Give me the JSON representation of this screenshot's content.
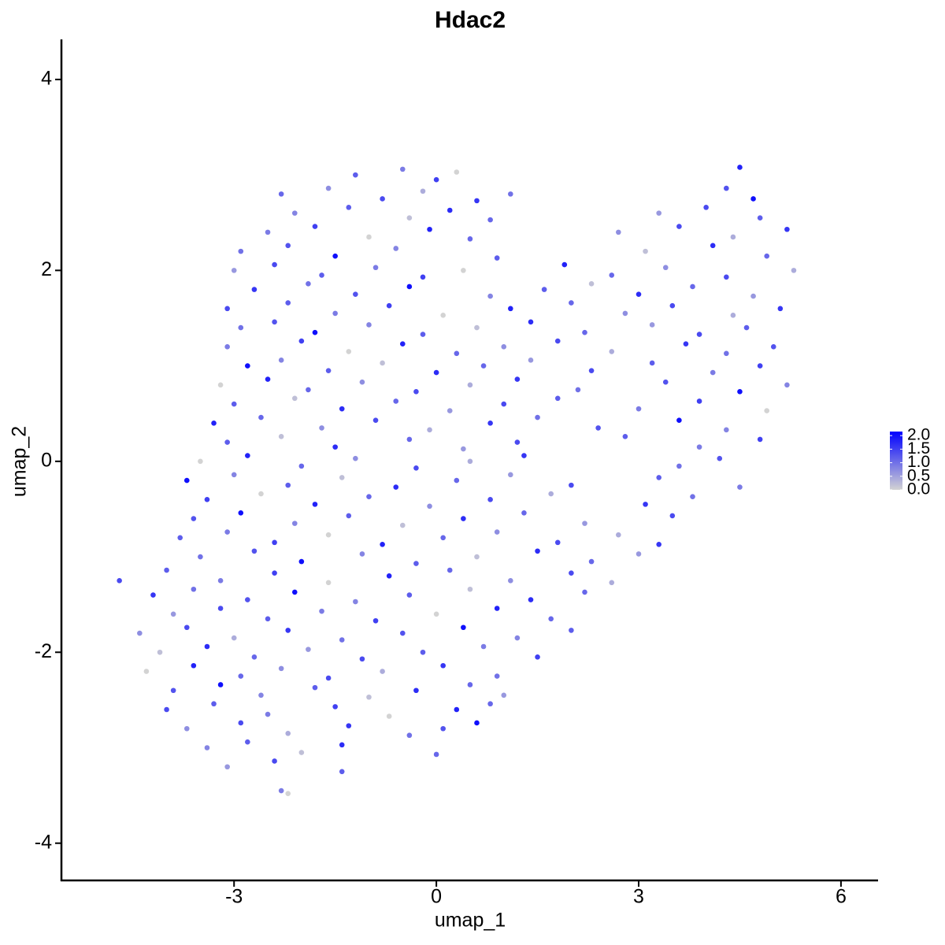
{
  "chart_data": {
    "type": "scatter",
    "title": "Hdac2",
    "x_label": "umap_1",
    "y_label": "umap_2",
    "xlim": [
      -5.56,
      6.55
    ],
    "ylim": [
      -4.39,
      4.42
    ],
    "xticks": [
      -3,
      0,
      3,
      6
    ],
    "yticks": [
      -4,
      -2,
      0,
      2,
      4
    ],
    "color_scale": {
      "low": "#d3d3d3",
      "high": "#0000ff",
      "limits": [
        0,
        2.15
      ],
      "ticks": [
        {
          "value": 0,
          "label": "0.0"
        },
        {
          "value": 0.5,
          "label": "0.5"
        },
        {
          "value": 1,
          "label": "1.0"
        },
        {
          "value": 1.5,
          "label": "1.5"
        },
        {
          "value": 2,
          "label": "2.0"
        }
      ]
    },
    "x": [
      -1.2,
      -0.5,
      0.0,
      0.3,
      4.5,
      -2.3,
      -1.6,
      -0.8,
      -0.2,
      0.6,
      1.1,
      4.3,
      4.7,
      -2.1,
      -1.3,
      -0.4,
      0.2,
      0.8,
      3.3,
      4.0,
      4.8,
      -2.5,
      -1.8,
      -1.0,
      -0.1,
      0.5,
      2.7,
      3.6,
      4.4,
      5.2,
      -2.9,
      -2.2,
      -1.5,
      -0.6,
      0.9,
      3.1,
      4.1,
      4.9,
      -3.0,
      -2.4,
      -1.7,
      -0.9,
      -0.2,
      0.4,
      1.9,
      2.6,
      3.4,
      4.3,
      5.3,
      -2.7,
      -1.9,
      -1.2,
      -0.4,
      0.8,
      1.6,
      2.3,
      3.0,
      3.8,
      4.7,
      -3.1,
      -2.2,
      -1.5,
      -0.7,
      0.1,
      1.1,
      2.0,
      2.8,
      3.5,
      4.4,
      5.1,
      -2.9,
      -2.4,
      -1.8,
      -1.0,
      -0.2,
      0.6,
      1.4,
      2.2,
      3.2,
      3.9,
      4.6,
      -3.1,
      -2.0,
      -1.3,
      -0.5,
      0.3,
      1.0,
      1.8,
      2.6,
      3.7,
      4.3,
      5.0,
      -2.8,
      -2.3,
      -1.6,
      -0.8,
      0.0,
      0.7,
      1.4,
      2.3,
      3.2,
      4.1,
      4.8,
      -3.2,
      -2.5,
      -1.9,
      -1.1,
      -0.3,
      0.5,
      1.2,
      2.1,
      3.4,
      4.5,
      5.2,
      -3.0,
      -2.1,
      -1.4,
      -0.6,
      0.2,
      1.0,
      1.8,
      3.0,
      3.9,
      4.9,
      -3.3,
      -2.6,
      -1.7,
      -0.9,
      -0.1,
      0.8,
      1.5,
      2.4,
      3.6,
      4.3,
      -3.1,
      -2.3,
      -1.5,
      -0.4,
      0.4,
      1.2,
      2.8,
      3.9,
      4.8,
      -3.5,
      -2.8,
      -2.0,
      -1.2,
      -0.3,
      0.5,
      1.3,
      3.6,
      4.2,
      -3.7,
      -3.0,
      -2.2,
      -1.4,
      -0.6,
      0.3,
      1.1,
      2.0,
      3.3,
      4.5,
      -3.4,
      -2.6,
      -1.8,
      -1.0,
      -0.1,
      0.8,
      1.7,
      3.1,
      3.8,
      -3.6,
      -2.9,
      -2.1,
      -1.3,
      -0.5,
      0.4,
      1.3,
      2.2,
      3.5,
      -3.8,
      -3.1,
      -2.4,
      -1.6,
      -0.8,
      0.1,
      0.9,
      1.8,
      2.7,
      3.3,
      -3.5,
      -2.7,
      -2.0,
      -1.1,
      -0.3,
      0.6,
      1.5,
      2.3,
      3.0,
      -4.7,
      -4.0,
      -3.2,
      -2.4,
      -1.6,
      -0.7,
      0.2,
      1.1,
      2.0,
      2.6,
      -4.2,
      -3.6,
      -2.8,
      -2.1,
      -1.2,
      -0.4,
      0.5,
      1.4,
      2.2,
      -3.9,
      -3.2,
      -2.5,
      -1.7,
      -0.9,
      0.0,
      0.9,
      1.7,
      -4.4,
      -3.7,
      -3.0,
      -2.2,
      -1.4,
      -0.5,
      0.4,
      1.2,
      2.0,
      -4.1,
      -3.4,
      -2.7,
      -1.9,
      -1.1,
      -0.2,
      0.7,
      1.5,
      -4.3,
      -3.6,
      -2.9,
      -2.3,
      -1.6,
      -0.8,
      0.1,
      0.9,
      -3.9,
      -3.2,
      -2.6,
      -1.8,
      -1.0,
      -0.3,
      0.5,
      1.0,
      -4.0,
      -3.3,
      -2.5,
      -1.5,
      -0.7,
      0.3,
      0.8,
      -3.7,
      -2.9,
      -2.2,
      -1.3,
      -0.4,
      0.1,
      0.6,
      -3.4,
      -2.8,
      -2.0,
      -1.4,
      0.0,
      -3.1,
      -2.4,
      -1.4,
      -2.3,
      -2.2
    ],
    "values": [
      3.0,
      3.06,
      2.95,
      3.03,
      3.08,
      2.8,
      2.86,
      2.75,
      2.83,
      2.73,
      2.8,
      2.86,
      2.75,
      2.6,
      2.66,
      2.55,
      2.63,
      2.53,
      2.6,
      2.66,
      2.55,
      2.4,
      2.46,
      2.35,
      2.43,
      2.33,
      2.4,
      2.46,
      2.35,
      2.43,
      2.2,
      2.26,
      2.15,
      2.23,
      2.13,
      2.2,
      2.26,
      2.15,
      2.0,
      2.06,
      1.95,
      2.03,
      1.93,
      2.0,
      2.06,
      1.95,
      2.03,
      1.93,
      2.0,
      1.8,
      1.86,
      1.75,
      1.83,
      1.73,
      1.8,
      1.86,
      1.75,
      1.83,
      1.73,
      1.6,
      1.66,
      1.55,
      1.63,
      1.53,
      1.6,
      1.66,
      1.55,
      1.63,
      1.53,
      1.6,
      1.4,
      1.46,
      1.35,
      1.43,
      1.33,
      1.4,
      1.46,
      1.35,
      1.43,
      1.33,
      1.4,
      1.2,
      1.26,
      1.15,
      1.23,
      1.13,
      1.2,
      1.26,
      1.15,
      1.23,
      1.13,
      1.2,
      1.0,
      1.06,
      0.95,
      1.03,
      0.93,
      1.0,
      1.06,
      0.95,
      1.03,
      0.93,
      1.0,
      0.8,
      0.86,
      0.75,
      0.83,
      0.73,
      0.8,
      0.86,
      0.75,
      0.83,
      0.73,
      0.8,
      0.6,
      0.66,
      0.55,
      0.63,
      0.53,
      0.6,
      0.66,
      0.55,
      0.63,
      0.53,
      0.4,
      0.46,
      0.35,
      0.43,
      0.33,
      0.4,
      0.46,
      0.35,
      0.43,
      0.33,
      0.2,
      0.26,
      0.15,
      0.23,
      0.13,
      0.2,
      0.26,
      0.15,
      0.23,
      0.0,
      0.06,
      -0.05,
      0.03,
      -0.07,
      0.0,
      0.06,
      -0.05,
      0.03,
      -0.2,
      -0.14,
      -0.25,
      -0.17,
      -0.27,
      -0.2,
      -0.14,
      -0.25,
      -0.17,
      -0.27,
      -0.4,
      -0.34,
      -0.45,
      -0.37,
      -0.47,
      -0.4,
      -0.34,
      -0.45,
      -0.37,
      -0.6,
      -0.54,
      -0.65,
      -0.57,
      -0.67,
      -0.6,
      -0.54,
      -0.65,
      -0.57,
      -0.8,
      -0.74,
      -0.85,
      -0.77,
      -0.87,
      -0.8,
      -0.74,
      -0.85,
      -0.77,
      -0.87,
      -1.0,
      -0.94,
      -1.05,
      -0.97,
      -1.07,
      -1.0,
      -0.94,
      -1.05,
      -0.97,
      -1.25,
      -1.14,
      -1.25,
      -1.17,
      -1.27,
      -1.2,
      -1.14,
      -1.25,
      -1.17,
      -1.27,
      -1.4,
      -1.34,
      -1.45,
      -1.37,
      -1.47,
      -1.4,
      -1.34,
      -1.45,
      -1.37,
      -1.6,
      -1.54,
      -1.65,
      -1.57,
      -1.67,
      -1.6,
      -1.54,
      -1.65,
      -1.8,
      -1.74,
      -1.85,
      -1.77,
      -1.87,
      -1.8,
      -1.74,
      -1.85,
      -1.77,
      -2.0,
      -1.94,
      -2.05,
      -1.97,
      -2.07,
      -2.0,
      -1.94,
      -2.05,
      -2.2,
      -2.14,
      -2.25,
      -2.17,
      -2.27,
      -2.2,
      -2.14,
      -2.25,
      -2.4,
      -2.34,
      -2.45,
      -2.37,
      -2.47,
      -2.4,
      -2.34,
      -2.45,
      -2.6,
      -2.54,
      -2.65,
      -2.57,
      -2.67,
      -2.6,
      -2.54,
      -2.8,
      -2.74,
      -2.85,
      -2.77,
      -2.87,
      -2.8,
      -2.74,
      -3.0,
      -2.94,
      -3.05,
      -2.97,
      -3.07,
      -3.2,
      -3.14,
      -3.25,
      -3.45,
      -3.48
    ],
    "color_values": [
      1.2,
      0.9,
      1.5,
      0.0,
      1.8,
      1.1,
      0.7,
      1.4,
      0.4,
      1.6,
      1.0,
      1.3,
      2.0,
      0.8,
      1.2,
      0.2,
      1.7,
      1.1,
      0.6,
      1.4,
      1.2,
      0.9,
      1.5,
      0.0,
      1.8,
      1.1,
      0.7,
      1.4,
      0.4,
      1.6,
      1.0,
      1.3,
      2.0,
      0.8,
      1.2,
      0.2,
      1.7,
      1.1,
      0.6,
      1.4,
      1.2,
      0.9,
      1.5,
      0.0,
      1.8,
      1.1,
      0.7,
      1.4,
      0.4,
      1.6,
      1.0,
      1.3,
      2.0,
      0.8,
      1.2,
      0.2,
      1.7,
      1.1,
      0.6,
      1.4,
      1.2,
      0.9,
      1.5,
      0.0,
      1.8,
      1.1,
      0.7,
      1.4,
      0.4,
      1.6,
      1.0,
      1.3,
      2.0,
      0.8,
      1.2,
      0.2,
      1.7,
      1.1,
      0.6,
      1.4,
      1.2,
      0.9,
      1.5,
      0.0,
      1.8,
      1.1,
      0.7,
      1.4,
      0.4,
      1.6,
      1.0,
      1.3,
      2.0,
      0.8,
      1.2,
      0.2,
      1.7,
      1.1,
      0.6,
      1.4,
      1.2,
      0.9,
      1.5,
      0.0,
      1.8,
      1.1,
      0.7,
      1.4,
      0.4,
      1.6,
      1.0,
      1.3,
      2.0,
      0.8,
      1.2,
      0.2,
      1.7,
      1.1,
      0.6,
      1.4,
      1.2,
      0.9,
      1.5,
      0.0,
      1.8,
      1.1,
      0.7,
      1.4,
      0.4,
      1.6,
      1.0,
      1.3,
      2.0,
      0.8,
      1.2,
      0.2,
      1.7,
      1.1,
      0.6,
      1.4,
      1.2,
      0.9,
      1.5,
      0.0,
      1.8,
      1.1,
      0.7,
      1.4,
      0.4,
      1.6,
      1.0,
      1.3,
      2.0,
      0.8,
      1.2,
      0.2,
      1.7,
      1.1,
      0.6,
      1.4,
      1.2,
      0.9,
      1.5,
      0.0,
      1.8,
      1.1,
      0.7,
      1.4,
      0.4,
      1.6,
      1.0,
      1.3,
      2.0,
      0.8,
      1.2,
      0.2,
      1.7,
      1.1,
      0.6,
      1.4,
      1.2,
      0.9,
      1.5,
      0.0,
      1.8,
      1.1,
      0.7,
      1.4,
      0.4,
      1.6,
      1.0,
      1.3,
      2.0,
      0.8,
      1.2,
      0.2,
      1.7,
      1.1,
      0.6,
      1.4,
      1.2,
      0.9,
      1.5,
      0.0,
      1.8,
      1.1,
      0.7,
      1.4,
      0.4,
      1.6,
      1.0,
      1.3,
      2.0,
      0.8,
      1.2,
      0.2,
      1.7,
      1.1,
      0.6,
      1.4,
      1.2,
      0.9,
      1.5,
      0.0,
      1.8,
      1.1,
      0.7,
      1.4,
      0.4,
      1.6,
      1.0,
      1.3,
      2.0,
      0.8,
      1.2,
      0.2,
      1.7,
      1.1,
      0.6,
      1.4,
      1.2,
      0.9,
      1.5,
      0.0,
      1.8,
      1.1,
      0.7,
      1.4,
      0.4,
      1.6,
      1.0,
      1.3,
      2.0,
      0.8,
      1.2,
      0.2,
      1.7,
      1.1,
      0.6,
      1.4,
      1.2,
      0.9,
      1.5,
      0.0,
      1.8,
      1.1,
      0.7,
      1.4,
      0.4,
      1.6,
      1.0,
      1.3,
      2.0,
      0.8,
      1.2,
      0.2,
      1.7,
      1.1,
      0.6,
      1.4,
      1.2,
      0.9,
      0.0
    ]
  }
}
